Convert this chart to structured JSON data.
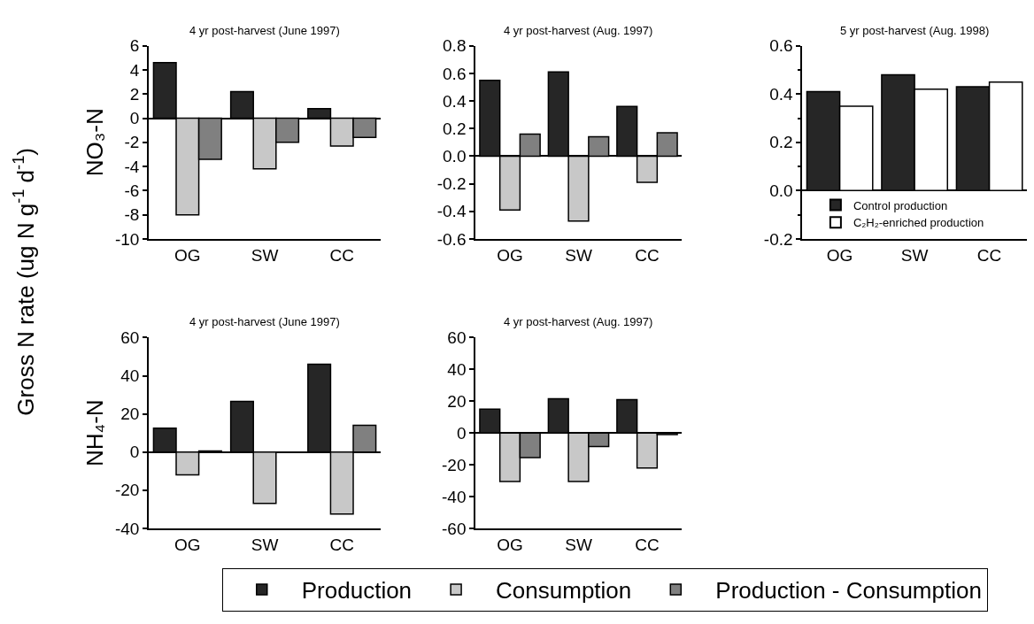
{
  "chart_data": [
    {
      "type": "bar",
      "title": "4 yr post-harvest (June 1997)",
      "ylabel": "NO₃-N",
      "annotations": [
        "Gross N rate (ug N g$^{-1}$ d$^{-1}$)"
      ],
      "categories": [
        "OG",
        "SW",
        "CC"
      ],
      "legend": "bottom",
      "series": [
        {
          "name": "Production",
          "color": "#262626",
          "values": [
            4.6,
            2.2,
            0.8
          ]
        },
        {
          "name": "Consumption",
          "color": "#c8c8c8",
          "values": [
            -8.0,
            -4.2,
            -2.3
          ]
        },
        {
          "name": "Production - Consumption",
          "color": "#808080",
          "values": [
            -3.4,
            -2.0,
            -1.6
          ]
        }
      ],
      "ylim": [
        -10,
        6
      ],
      "yticks": [
        -10,
        -8,
        -6,
        -4,
        -2,
        0,
        2,
        4,
        6
      ]
    },
    {
      "type": "bar",
      "title": "4 yr post-harvest (Aug. 1997)",
      "categories": [
        "OG",
        "SW",
        "CC"
      ],
      "series": [
        {
          "color": "#262626",
          "values": [
            0.55,
            0.61,
            0.36
          ]
        },
        {
          "color": "#c8c8c8",
          "values": [
            -0.39,
            -0.47,
            -0.19
          ]
        },
        {
          "color": "#808080",
          "values": [
            0.16,
            0.14,
            0.17
          ]
        }
      ],
      "ylim": [
        -0.6,
        0.8
      ],
      "yticks": [
        {
          "value": -0.6,
          "label": "-0.6"
        },
        {
          "value": -0.4,
          "label": "-0.4"
        },
        {
          "value": -0.2,
          "label": "-0.2"
        },
        {
          "value": 0,
          "label": "0.0"
        },
        {
          "value": 0.2,
          "label": "0.2"
        },
        {
          "value": 0.4,
          "label": "0.4"
        },
        {
          "value": 0.6,
          "label": "0.6"
        },
        {
          "value": 0.8,
          "label": "0.8"
        }
      ]
    },
    {
      "type": "bar",
      "title": "5 yr post-harvest (Aug. 1998)",
      "categories": [
        "OG",
        "SW",
        "CC"
      ],
      "legend": "bottom left",
      "series": [
        {
          "name": "Control production",
          "color": "#262626",
          "values": [
            0.41,
            0.48,
            0.43
          ]
        },
        {
          "name": "C₂H₂-enriched production",
          "color": "#ffffff",
          "values": [
            0.35,
            0.42,
            0.45
          ]
        }
      ],
      "ylim": [
        -0.2,
        0.6
      ],
      "yticks": [
        {
          "value": -0.2,
          "label": "-0.2"
        },
        {
          "value": 0,
          "label": "0.0"
        },
        {
          "value": 0.2,
          "label": "0.2"
        },
        {
          "value": 0.4,
          "label": "0.4"
        },
        {
          "value": 0.6,
          "label": "0.6"
        }
      ]
    },
    {
      "type": "bar",
      "title": "4 yr post-harvest (June 1997)",
      "ylabel": "NH₄-N",
      "categories": [
        "OG",
        "SW",
        "CC"
      ],
      "series": [
        {
          "color": "#262626",
          "values": [
            12.5,
            26.5,
            46
          ]
        },
        {
          "color": "#c8c8c8",
          "values": [
            -12,
            -27,
            -32.5
          ]
        },
        {
          "color": "#808080",
          "values": [
            0.5,
            -0.3,
            14
          ]
        }
      ],
      "ylim": [
        -40,
        60
      ],
      "yticks": [
        -40,
        -20,
        0,
        20,
        40,
        60
      ]
    },
    {
      "type": "bar",
      "title": "4 yr post-harvest (Aug. 1997)",
      "categories": [
        "OG",
        "SW",
        "CC"
      ],
      "series": [
        {
          "color": "#262626",
          "values": [
            15,
            21.5,
            21
          ]
        },
        {
          "color": "#c8c8c8",
          "values": [
            -30.5,
            -30.5,
            -22
          ]
        },
        {
          "color": "#808080",
          "values": [
            -15.5,
            -8.5,
            -1
          ]
        }
      ],
      "ylim": [
        -60,
        60
      ],
      "yticks": [
        -60,
        -40,
        -20,
        0,
        20,
        40,
        60
      ]
    }
  ]
}
